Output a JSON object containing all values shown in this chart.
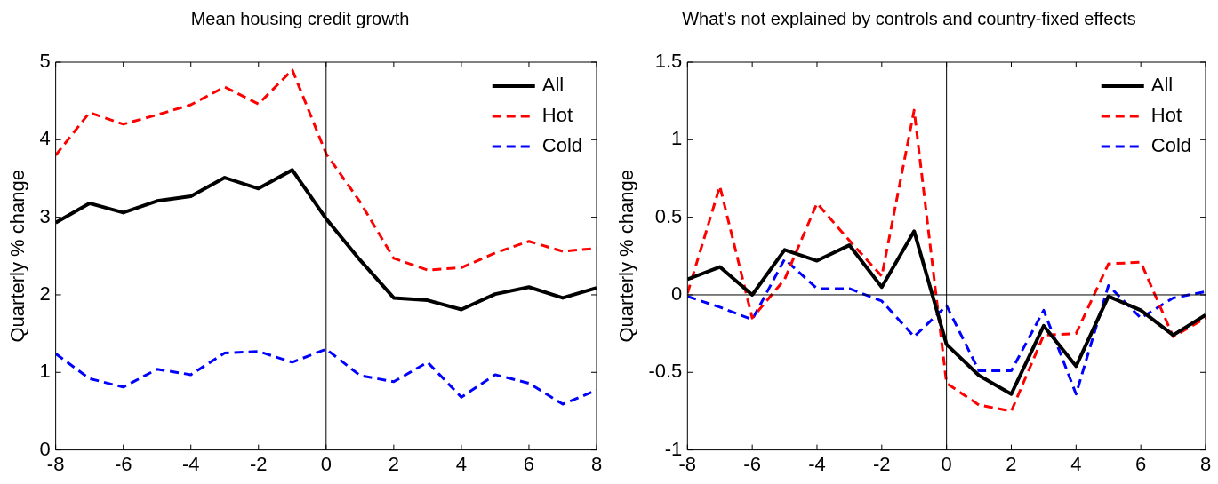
{
  "chart_data": [
    {
      "type": "line",
      "title": "Mean housing credit growth",
      "ylabel": "Quarterly % change",
      "x": [
        -8,
        -7,
        -6,
        -5,
        -4,
        -3,
        -2,
        -1,
        0,
        1,
        2,
        3,
        4,
        5,
        6,
        7,
        8
      ],
      "series": [
        {
          "name": "All",
          "color": "#000000",
          "line_style": "solid",
          "values": [
            2.93,
            3.18,
            3.06,
            3.21,
            3.27,
            3.51,
            3.37,
            3.61,
            2.98,
            2.45,
            1.96,
            1.93,
            1.81,
            2.01,
            2.1,
            1.96,
            2.09
          ]
        },
        {
          "name": "Hot",
          "color": "#ff0000",
          "line_style": "dashed",
          "values": [
            3.8,
            4.35,
            4.2,
            4.32,
            4.45,
            4.68,
            4.46,
            4.9,
            3.82,
            3.2,
            2.47,
            2.32,
            2.35,
            2.54,
            2.69,
            2.56,
            2.6
          ]
        },
        {
          "name": "Cold",
          "color": "#0000ff",
          "line_style": "dashed",
          "values": [
            1.24,
            0.92,
            0.81,
            1.04,
            0.97,
            1.25,
            1.27,
            1.13,
            1.3,
            0.96,
            0.88,
            1.13,
            0.68,
            0.97,
            0.86,
            0.59,
            0.77
          ]
        }
      ],
      "xlim": [
        -8,
        8
      ],
      "xticks": [
        -8,
        -6,
        -4,
        -2,
        0,
        2,
        4,
        6,
        8
      ],
      "ylim": [
        0,
        5
      ],
      "yticks": [
        0,
        1,
        2,
        3,
        4,
        5
      ],
      "ref_lines": [
        {
          "axis": "x",
          "value": 0,
          "color": "#000000"
        }
      ],
      "grid": false,
      "legend": "top right",
      "marker": "none"
    },
    {
      "type": "line",
      "title": "What’s not explained by controls and country-fixed effects",
      "ylabel": "Quarterly % change",
      "x": [
        -8,
        -7,
        -6,
        -5,
        -4,
        -3,
        -2,
        -1,
        0,
        1,
        2,
        3,
        4,
        5,
        6,
        7,
        8
      ],
      "series": [
        {
          "name": "All",
          "color": "#000000",
          "line_style": "solid",
          "values": [
            0.1,
            0.18,
            0.0,
            0.29,
            0.22,
            0.32,
            0.05,
            0.41,
            -0.32,
            -0.52,
            -0.64,
            -0.2,
            -0.46,
            -0.01,
            -0.1,
            -0.26,
            -0.13
          ]
        },
        {
          "name": "Hot",
          "color": "#ff0000",
          "line_style": "dashed",
          "values": [
            0.01,
            0.7,
            -0.15,
            0.1,
            0.59,
            0.35,
            0.12,
            1.19,
            -0.57,
            -0.71,
            -0.75,
            -0.26,
            -0.25,
            0.2,
            0.21,
            -0.27,
            -0.15
          ]
        },
        {
          "name": "Cold",
          "color": "#0000ff",
          "line_style": "dashed",
          "values": [
            -0.01,
            -0.08,
            -0.16,
            0.23,
            0.04,
            0.04,
            -0.04,
            -0.27,
            -0.07,
            -0.49,
            -0.49,
            -0.1,
            -0.64,
            0.06,
            -0.15,
            -0.02,
            0.02
          ]
        }
      ],
      "xlim": [
        -8,
        8
      ],
      "xticks": [
        -8,
        -6,
        -4,
        -2,
        0,
        2,
        4,
        6,
        8
      ],
      "ylim": [
        -1,
        1.5
      ],
      "yticks": [
        -1,
        -0.5,
        0,
        0.5,
        1,
        1.5
      ],
      "ref_lines": [
        {
          "axis": "x",
          "value": 0,
          "color": "#000000"
        },
        {
          "axis": "y",
          "value": 0,
          "color": "#000000"
        }
      ],
      "grid": false,
      "legend": "top right",
      "marker": "none"
    }
  ]
}
